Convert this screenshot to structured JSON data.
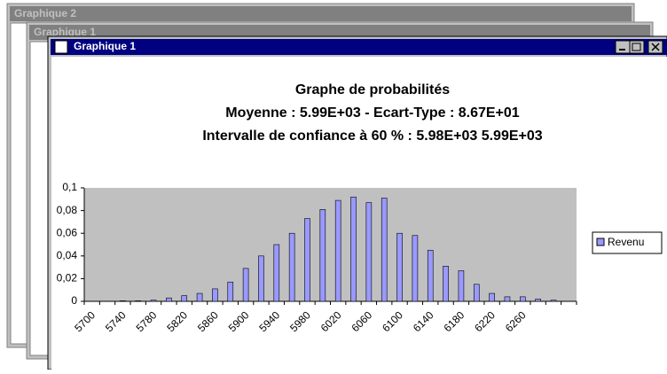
{
  "windows": [
    {
      "title": "Graphique 2"
    },
    {
      "title": "Graphique 1"
    },
    {
      "title": "Graphique 1"
    }
  ],
  "chart_data": {
    "type": "bar",
    "title": [
      "Graphe de probabilités",
      "Moyenne : 5.99E+03  -  Ecart-Type : 8.67E+01",
      "Intervalle de confiance à 60 % : 5.98E+03   5.99E+03"
    ],
    "categories": [
      "5700",
      null,
      "5740",
      null,
      "5780",
      null,
      "5820",
      null,
      "5860",
      null,
      "5900",
      null,
      "5940",
      null,
      "5980",
      null,
      "6020",
      null,
      "6060",
      null,
      "6100",
      null,
      "6140",
      null,
      "6180",
      null,
      "6220",
      null,
      "6260",
      null,
      null,
      null
    ],
    "series": [
      {
        "name": "Revenu",
        "color": "#9999ff",
        "values": [
          0,
          0,
          0.0005,
          0.0005,
          0.001,
          0.003,
          0.005,
          0.007,
          0.011,
          0.017,
          0.029,
          0.04,
          0.05,
          0.06,
          0.073,
          0.081,
          0.089,
          0.092,
          0.087,
          0.091,
          0.06,
          0.058,
          0.045,
          0.031,
          0.027,
          0.015,
          0.007,
          0.004,
          0.004,
          0.002,
          0.001,
          0
        ]
      }
    ],
    "ylim": [
      0,
      0.1
    ],
    "yticks": [
      0,
      {
        "value": 0.02,
        "label": "0,02"
      },
      {
        "value": 0.04,
        "label": "0,04"
      },
      {
        "value": 0.06,
        "label": "0,06"
      },
      {
        "value": 0.08,
        "label": "0,08"
      },
      {
        "value": 0.1,
        "label": "0,1"
      }
    ],
    "plot_background": "#c0c0c0",
    "legend": "right"
  }
}
